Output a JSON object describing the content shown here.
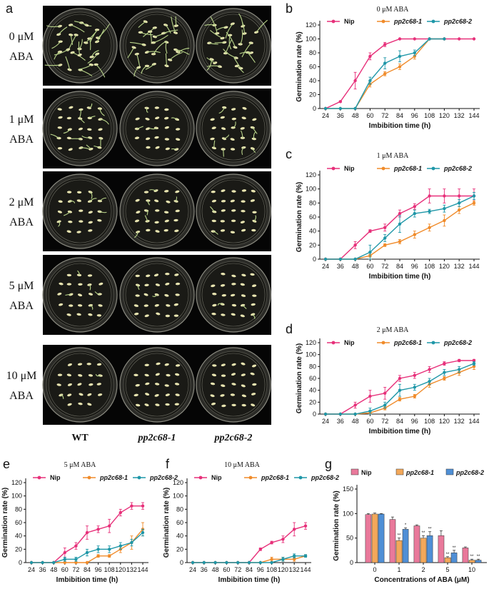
{
  "panel_a": {
    "letter": "a",
    "rows": [
      {
        "label_top": "0 μM",
        "label_bottom": "ABA",
        "growth": 1.0
      },
      {
        "label_top": "1 μM",
        "label_bottom": "ABA",
        "growth": 0.55
      },
      {
        "label_top": "2 μM",
        "label_bottom": "ABA",
        "growth": 0.35
      },
      {
        "label_top": "5 μM",
        "label_bottom": "ABA",
        "growth": 0.12
      },
      {
        "label_top": "10 μM",
        "label_bottom": "ABA",
        "growth": 0.04
      }
    ],
    "genotypes": [
      "WT",
      "pp2c68-1",
      "pp2c68-2"
    ]
  },
  "colors": {
    "Nip": "#e7307a",
    "pp2c68-1": "#f08b2a",
    "pp2c68-2": "#1f97a8",
    "bar_Nip": "#e9799b",
    "bar_pp2c68-1": "#f3a85a",
    "bar_pp2c68-2": "#4f8fd6"
  },
  "chart_data": [
    {
      "id": "b",
      "letter": "b",
      "type": "line",
      "title": "0 μM ABA",
      "xlabel": "Imbibition time (h)",
      "ylabel": "Germination rate (%)",
      "x": [
        "24",
        "36",
        "48",
        "60",
        "72",
        "84",
        "96",
        "108",
        "120",
        "132",
        "144"
      ],
      "ylim": [
        0,
        120
      ],
      "yticks": [
        "0",
        "20",
        "40",
        "60",
        "80",
        "100",
        "120"
      ],
      "legend": [
        "Nip",
        "pp2c68-1",
        "pp2c68-2"
      ],
      "series": [
        {
          "name": "Nip",
          "values": [
            0,
            10,
            40,
            75,
            92,
            100,
            100,
            100,
            100,
            100,
            100
          ],
          "err": [
            0,
            1,
            12,
            5,
            3,
            0,
            0,
            0,
            0,
            0,
            0
          ]
        },
        {
          "name": "pp2c68-1",
          "values": [
            0,
            0,
            0,
            35,
            50,
            60,
            75,
            100,
            100,
            null,
            null
          ],
          "err": [
            0,
            0,
            0,
            4,
            3,
            4,
            4,
            0,
            0,
            0,
            0
          ]
        },
        {
          "name": "pp2c68-2",
          "values": [
            0,
            0,
            0,
            40,
            65,
            75,
            80,
            100,
            100,
            null,
            null
          ],
          "err": [
            0,
            0,
            0,
            5,
            8,
            8,
            4,
            0,
            0,
            0,
            0
          ]
        }
      ]
    },
    {
      "id": "c",
      "letter": "c",
      "type": "line",
      "title": "1 μM ABA",
      "xlabel": "Imbibition time (h)",
      "ylabel": "Germination rate (%)",
      "x": [
        "24",
        "36",
        "48",
        "60",
        "72",
        "84",
        "96",
        "108",
        "120",
        "132",
        "144"
      ],
      "ylim": [
        0,
        120
      ],
      "yticks": [
        "0",
        "20",
        "40",
        "60",
        "80",
        "100",
        "120"
      ],
      "legend": [
        "Nip",
        "pp2c68-1",
        "pp2c68-2"
      ],
      "series": [
        {
          "name": "Nip",
          "values": [
            0,
            0,
            20,
            40,
            45,
            65,
            75,
            90,
            90,
            90,
            90
          ],
          "err": [
            0,
            0,
            5,
            2,
            5,
            5,
            4,
            10,
            10,
            10,
            10
          ]
        },
        {
          "name": "pp2c68-1",
          "values": [
            0,
            0,
            0,
            5,
            20,
            25,
            35,
            45,
            55,
            70,
            80
          ],
          "err": [
            0,
            0,
            0,
            2,
            2,
            3,
            5,
            5,
            8,
            5,
            3
          ]
        },
        {
          "name": "pp2c68-2",
          "values": [
            0,
            0,
            0,
            10,
            30,
            50,
            65,
            68,
            72,
            80,
            90
          ],
          "err": [
            0,
            0,
            0,
            10,
            5,
            12,
            5,
            3,
            5,
            5,
            5
          ]
        }
      ]
    },
    {
      "id": "d",
      "letter": "d",
      "type": "line",
      "title": "2 μM ABA",
      "xlabel": "Imbibition time (h)",
      "ylabel": "Germination rate (%)",
      "x": [
        "24",
        "36",
        "48",
        "60",
        "72",
        "84",
        "96",
        "108",
        "120",
        "132",
        "144"
      ],
      "ylim": [
        0,
        120
      ],
      "yticks": [
        "0",
        "20",
        "40",
        "60",
        "80",
        "100",
        "120"
      ],
      "legend": [
        "Nip",
        "pp2c68-1",
        "pp2c68-2"
      ],
      "series": [
        {
          "name": "Nip",
          "values": [
            0,
            0,
            15,
            30,
            35,
            60,
            65,
            75,
            85,
            90,
            90
          ],
          "err": [
            0,
            0,
            5,
            10,
            10,
            5,
            5,
            5,
            3,
            2,
            2
          ]
        },
        {
          "name": "pp2c68-1",
          "values": [
            0,
            0,
            0,
            2,
            10,
            25,
            30,
            50,
            60,
            70,
            80
          ],
          "err": [
            0,
            0,
            0,
            1,
            3,
            3,
            3,
            5,
            3,
            5,
            5
          ]
        },
        {
          "name": "pp2c68-2",
          "values": [
            0,
            0,
            0,
            5,
            15,
            40,
            45,
            55,
            70,
            75,
            85
          ],
          "err": [
            0,
            0,
            0,
            5,
            5,
            10,
            5,
            5,
            5,
            5,
            3
          ]
        }
      ]
    },
    {
      "id": "e",
      "letter": "e",
      "type": "line",
      "title": "5 μM ABA",
      "xlabel": "Imbibition time (h)",
      "ylabel": "Germination rate (%)",
      "x": [
        "24",
        "36",
        "48",
        "60",
        "72",
        "84",
        "96",
        "108",
        "120",
        "132",
        "144"
      ],
      "ylim": [
        0,
        120
      ],
      "yticks": [
        "0",
        "20",
        "40",
        "60",
        "80",
        "100",
        "120"
      ],
      "legend": [
        "Nip",
        "pp2c68-1",
        "pp2c68-2"
      ],
      "series": [
        {
          "name": "Nip",
          "values": [
            0,
            0,
            0,
            15,
            25,
            45,
            50,
            55,
            75,
            85,
            85
          ],
          "err": [
            0,
            0,
            0,
            7,
            5,
            10,
            5,
            10,
            5,
            5,
            5
          ]
        },
        {
          "name": "pp2c68-1",
          "values": [
            0,
            0,
            0,
            0,
            0,
            0,
            10,
            10,
            20,
            30,
            50
          ],
          "err": [
            0,
            0,
            0,
            0,
            0,
            0,
            2,
            2,
            5,
            10,
            10
          ]
        },
        {
          "name": "pp2c68-2",
          "values": [
            0,
            0,
            0,
            5,
            5,
            15,
            20,
            20,
            25,
            30,
            45
          ],
          "err": [
            0,
            0,
            0,
            3,
            3,
            5,
            5,
            5,
            5,
            5,
            5
          ]
        }
      ]
    },
    {
      "id": "f",
      "letter": "f",
      "type": "line",
      "title": "10 μM ABA",
      "xlabel": "Imbibition time (h)",
      "ylabel": "Germination rate (%)",
      "x": [
        "24",
        "36",
        "48",
        "60",
        "72",
        "84",
        "96",
        "108",
        "120",
        "132",
        "144"
      ],
      "ylim": [
        0,
        120
      ],
      "yticks": [
        "0",
        "20",
        "40",
        "60",
        "80",
        "100",
        "120"
      ],
      "legend": [
        "Nip",
        "pp2c68-1",
        "pp2c68-2"
      ],
      "series": [
        {
          "name": "Nip",
          "values": [
            0,
            0,
            0,
            0,
            0,
            0,
            20,
            30,
            35,
            50,
            55
          ],
          "err": [
            0,
            0,
            0,
            0,
            0,
            0,
            2,
            2,
            5,
            10,
            5
          ]
        },
        {
          "name": "pp2c68-1",
          "values": [
            0,
            0,
            0,
            0,
            0,
            0,
            0,
            5,
            5,
            5,
            10
          ],
          "err": [
            0,
            0,
            0,
            0,
            0,
            0,
            0,
            3,
            3,
            3,
            2
          ]
        },
        {
          "name": "pp2c68-2",
          "values": [
            0,
            0,
            0,
            0,
            0,
            0,
            0,
            0,
            5,
            10,
            10
          ],
          "err": [
            0,
            0,
            0,
            0,
            0,
            0,
            0,
            0,
            3,
            3,
            2
          ]
        }
      ]
    },
    {
      "id": "g",
      "letter": "g",
      "type": "bar",
      "xlabel": "Concentrations of ABA (μM)",
      "ylabel": "Germination rate (%)",
      "categories": [
        "0",
        "1",
        "2",
        "5",
        "10"
      ],
      "ylim": [
        0,
        150
      ],
      "yticks": [
        "0",
        "50",
        "100",
        "150"
      ],
      "legend": [
        "Nip",
        "pp2c68-1",
        "pp2c68-2"
      ],
      "series": [
        {
          "name": "Nip",
          "values": [
            98,
            88,
            75,
            55,
            30
          ],
          "err": [
            2,
            5,
            2,
            10,
            2
          ],
          "sig": [
            "",
            "",
            "",
            "",
            ""
          ]
        },
        {
          "name": "pp2c68-1",
          "values": [
            99,
            45,
            50,
            10,
            5
          ],
          "err": [
            2,
            5,
            5,
            2,
            2
          ],
          "sig": [
            "",
            "**",
            "**",
            "**",
            "**"
          ]
        },
        {
          "name": "pp2c68-2",
          "values": [
            99,
            68,
            55,
            20,
            5
          ],
          "err": [
            1,
            3,
            8,
            5,
            2
          ],
          "sig": [
            "",
            "*",
            "**",
            "**",
            "**"
          ]
        }
      ]
    }
  ]
}
